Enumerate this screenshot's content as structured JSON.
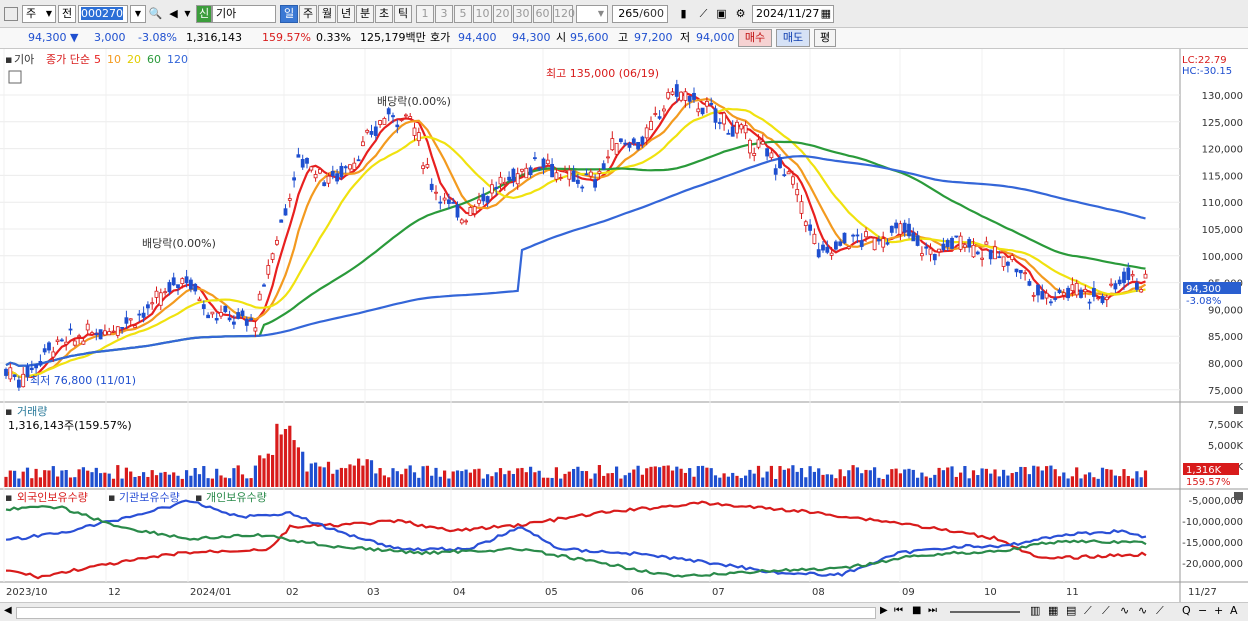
{
  "toolbar": {
    "mode": "주",
    "prev": "전",
    "code": "000270",
    "new_badge": "신",
    "name": "기아",
    "periods": [
      "일",
      "주",
      "월",
      "년",
      "분",
      "초",
      "틱"
    ],
    "minutes": [
      "1",
      "3",
      "5",
      "10",
      "20",
      "30",
      "60",
      "120"
    ],
    "count": "265",
    "count_total": "/600",
    "date": "2024/11/27"
  },
  "quote": {
    "price": "94,300",
    "arrow": "▼",
    "change": "3,000",
    "change_pct": "-3.08%",
    "volume": "1,316,143",
    "vol_ratio": "159.57%",
    "turnover": "0.33%",
    "amount": "125,179백만",
    "bid_label": "호가",
    "ask": "94,400",
    "bid": "94,300",
    "open_label": "시",
    "open": "95,600",
    "high_label": "고",
    "high": "97,200",
    "low_label": "저",
    "low": "94,000",
    "buy_btn": "매수",
    "sell_btn": "매도",
    "eval_btn": "평"
  },
  "price_panel": {
    "name": "기아",
    "legend_main": "종가 단순",
    "ma": [
      {
        "period": "5",
        "color": "#e8201f"
      },
      {
        "period": "10",
        "color": "#f39a1f"
      },
      {
        "period": "20",
        "color": "#f0e20f"
      },
      {
        "period": "60",
        "color": "#2a9a3a"
      },
      {
        "period": "120",
        "color": "#3466d8"
      }
    ],
    "lc": "LC:22.79",
    "hc": "HC:-30.15",
    "current_price_label": "94,300",
    "current_pct_label": "-3.08%",
    "annot_high": "최고 135,000 (06/19)",
    "annot_low": "최저 76,800 (11/01)",
    "annot_div1": "배당락(0.00%)",
    "annot_div2": "배당락(0.00%)",
    "y_ticks": [
      "130,000",
      "125,000",
      "120,000",
      "115,000",
      "110,000",
      "105,000",
      "100,000",
      "95,000",
      "90,000",
      "85,000",
      "80,000",
      "75,000"
    ]
  },
  "volume_panel": {
    "title": "거래량",
    "value": "1,316,143주(159.57%)",
    "y_ticks": [
      "7,500K",
      "5,000K",
      "2,500K"
    ],
    "current_label": "1,316K",
    "current_pct": "159.57%"
  },
  "holder_panel": {
    "legend": [
      {
        "name": "외국인보유수량",
        "color": "#d81b1b"
      },
      {
        "name": "기관보유수량",
        "color": "#2a4fd6"
      },
      {
        "name": "개인보유수량",
        "color": "#2a8a4a"
      }
    ],
    "y_ticks": [
      "-5,000,000",
      "-10,000,000",
      "-15,000,000",
      "-20,000,000"
    ]
  },
  "x_axis": {
    "labels": [
      "2023/10",
      "12",
      "2024/01",
      "02",
      "03",
      "04",
      "05",
      "06",
      "07",
      "08",
      "09",
      "10",
      "11",
      "11/27"
    ]
  },
  "chart_data": {
    "type": "candlestick",
    "x_range": [
      "2023/10",
      "2024/11/27"
    ],
    "ylim": [
      74000,
      134000
    ],
    "close_points": [
      [
        "2023/10",
        79000
      ],
      [
        "2023/11/01",
        76800
      ],
      [
        "2023/11",
        83000
      ],
      [
        "2023/12",
        88000
      ],
      [
        "2023/12",
        96500
      ],
      [
        "2024/01",
        88500
      ],
      [
        "2024/01",
        90000
      ],
      [
        "2024/02",
        118000
      ],
      [
        "2024/02",
        114000
      ],
      [
        "2024/03",
        126000
      ],
      [
        "2024/03",
        127000
      ],
      [
        "2024/04",
        108000
      ],
      [
        "2024/04",
        115000
      ],
      [
        "2024/05",
        115000
      ],
      [
        "2024/05",
        116000
      ],
      [
        "2024/06",
        121000
      ],
      [
        "2024/06/19",
        135000
      ],
      [
        "2024/07",
        128000
      ],
      [
        "2024/07",
        119000
      ],
      [
        "2024/08",
        100000
      ],
      [
        "2024/08",
        103000
      ],
      [
        "2024/09",
        103000
      ],
      [
        "2024/09",
        101000
      ],
      [
        "2024/10",
        100000
      ],
      [
        "2024/10",
        92000
      ],
      [
        "2024/11",
        95000
      ],
      [
        "2024/11/27",
        94300
      ]
    ],
    "ma120_points": [
      [
        84000
      ],
      [
        82000
      ],
      [
        83000
      ],
      [
        86000
      ],
      [
        100000
      ],
      [
        110000
      ],
      [
        118000
      ],
      [
        117000
      ],
      [
        112000
      ],
      [
        107000
      ]
    ]
  },
  "scroll": {
    "zoom_icon": "Q"
  }
}
